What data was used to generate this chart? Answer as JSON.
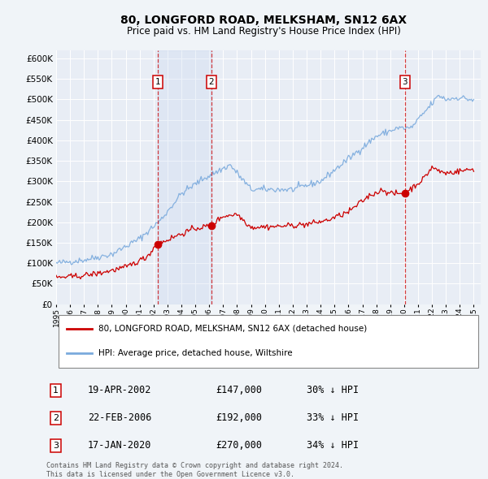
{
  "title": "80, LONGFORD ROAD, MELKSHAM, SN12 6AX",
  "subtitle": "Price paid vs. HM Land Registry's House Price Index (HPI)",
  "background_color": "#f0f4f8",
  "plot_bg_color": "#e8edf5",
  "grid_color": "#ffffff",
  "hpi_color": "#7aaadd",
  "price_color": "#cc0000",
  "ylim": [
    0,
    620000
  ],
  "yticks": [
    0,
    50000,
    100000,
    150000,
    200000,
    250000,
    300000,
    350000,
    400000,
    450000,
    500000,
    550000,
    600000
  ],
  "year_start": 1995,
  "year_end": 2025,
  "purchases": [
    {
      "date_num": 2002.29,
      "price": 147000,
      "label": "1"
    },
    {
      "date_num": 2006.14,
      "price": 192000,
      "label": "2"
    },
    {
      "date_num": 2020.05,
      "price": 270000,
      "label": "3"
    }
  ],
  "legend_house_label": "80, LONGFORD ROAD, MELKSHAM, SN12 6AX (detached house)",
  "legend_hpi_label": "HPI: Average price, detached house, Wiltshire",
  "table_rows": [
    {
      "num": "1",
      "date": "19-APR-2002",
      "price": "£147,000",
      "hpi": "30% ↓ HPI"
    },
    {
      "num": "2",
      "date": "22-FEB-2006",
      "price": "£192,000",
      "hpi": "33% ↓ HPI"
    },
    {
      "num": "3",
      "date": "17-JAN-2020",
      "price": "£270,000",
      "hpi": "34% ↓ HPI"
    }
  ],
  "footnote": "Contains HM Land Registry data © Crown copyright and database right 2024.\nThis data is licensed under the Open Government Licence v3.0."
}
